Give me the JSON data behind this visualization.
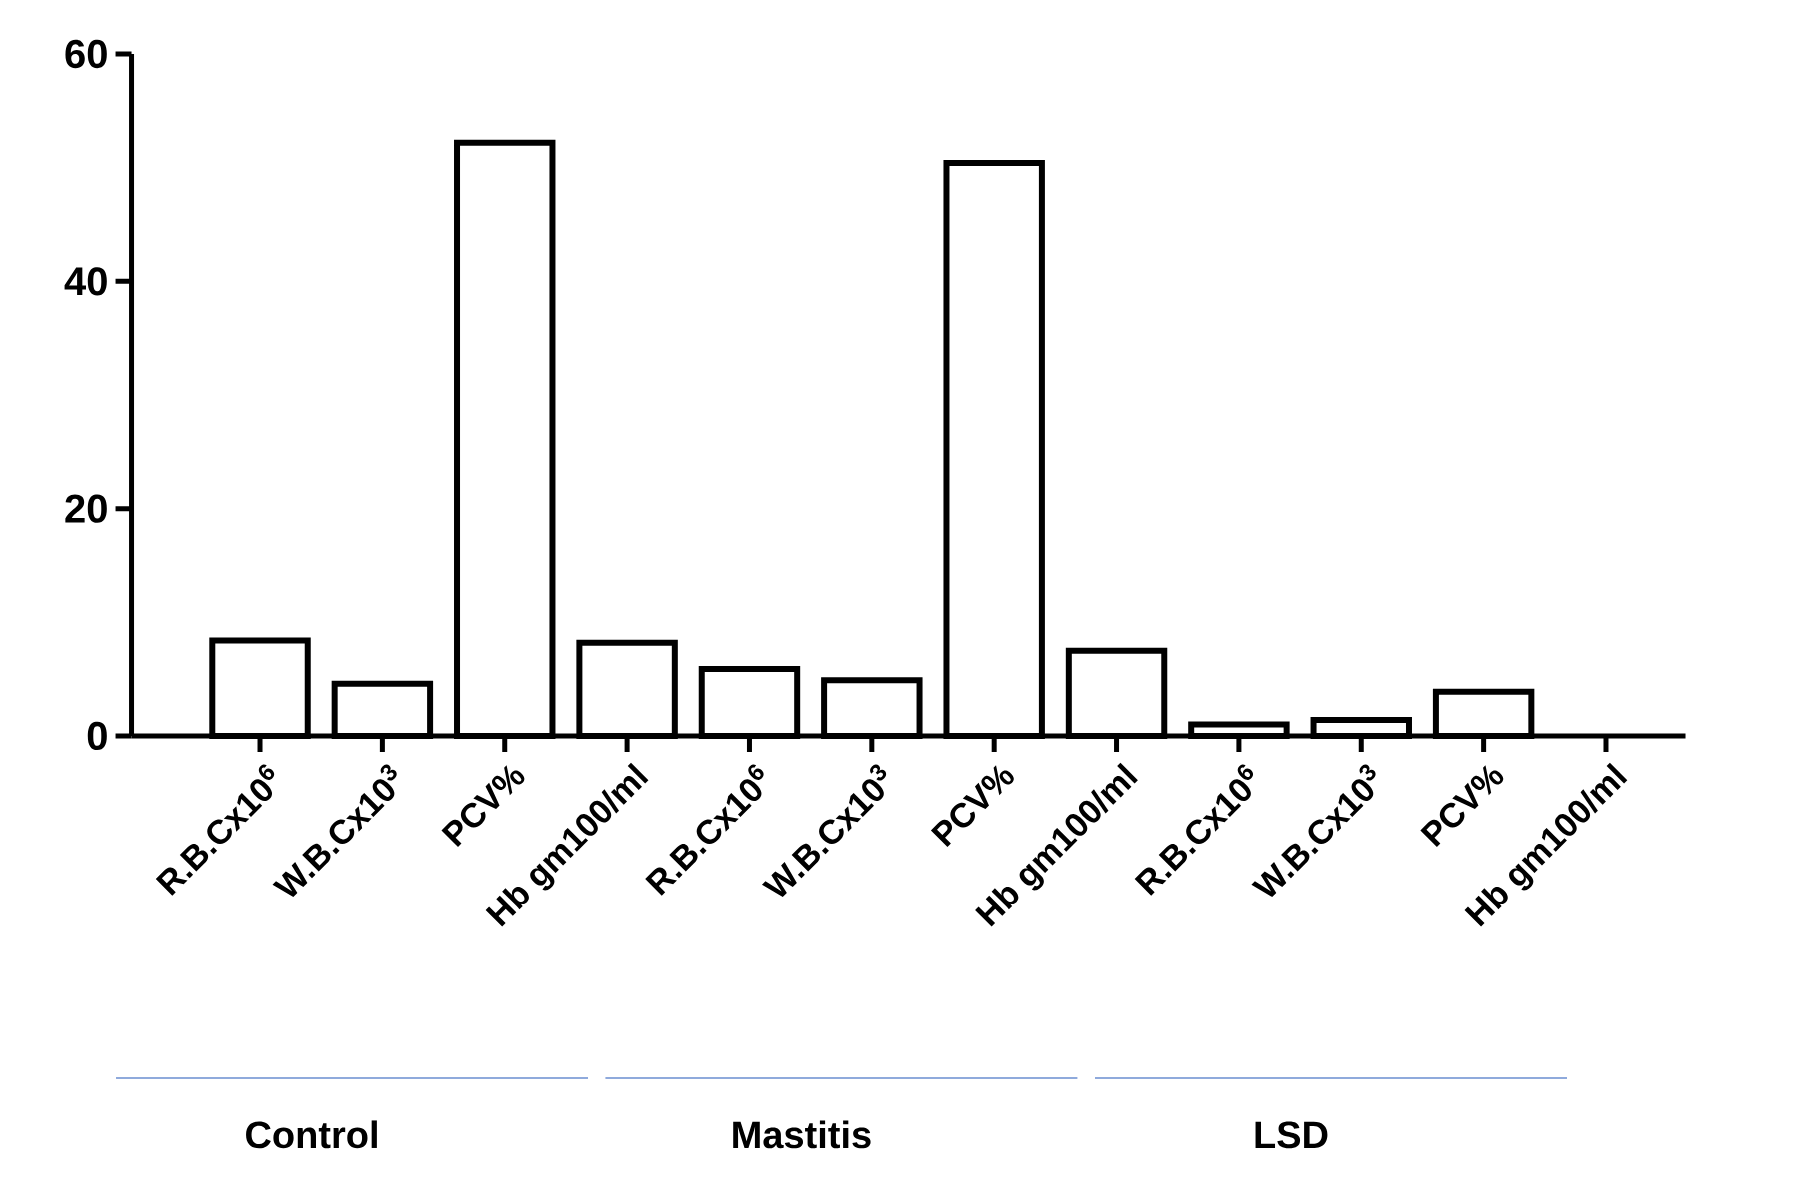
{
  "chart_data": {
    "type": "bar",
    "categories": [
      "R.B.Cx10$^{6}$",
      "W.B.Cx10$^{3}$",
      "PCV%",
      "Hb gm100/ml",
      "R.B.Cx10$^{6}$",
      "W.B.Cx10$^{3}$",
      "PCV%",
      "Hb gm100/ml",
      "R.B.Cx10$^{6}$",
      "W.B.Cx10$^{3}$",
      "PCV%",
      "Hb gm100/ml"
    ],
    "values": [
      8.4,
      4.6,
      52.2,
      8.2,
      5.9,
      4.9,
      50.4,
      7.5,
      1.0,
      1.4,
      3.9,
      null
    ],
    "color": "#000000",
    "ylim": [
      0,
      60
    ],
    "yticks": [
      0,
      20,
      40,
      60
    ],
    "annotations": [
      "Control",
      "Mastitis",
      "LSD"
    ]
  }
}
